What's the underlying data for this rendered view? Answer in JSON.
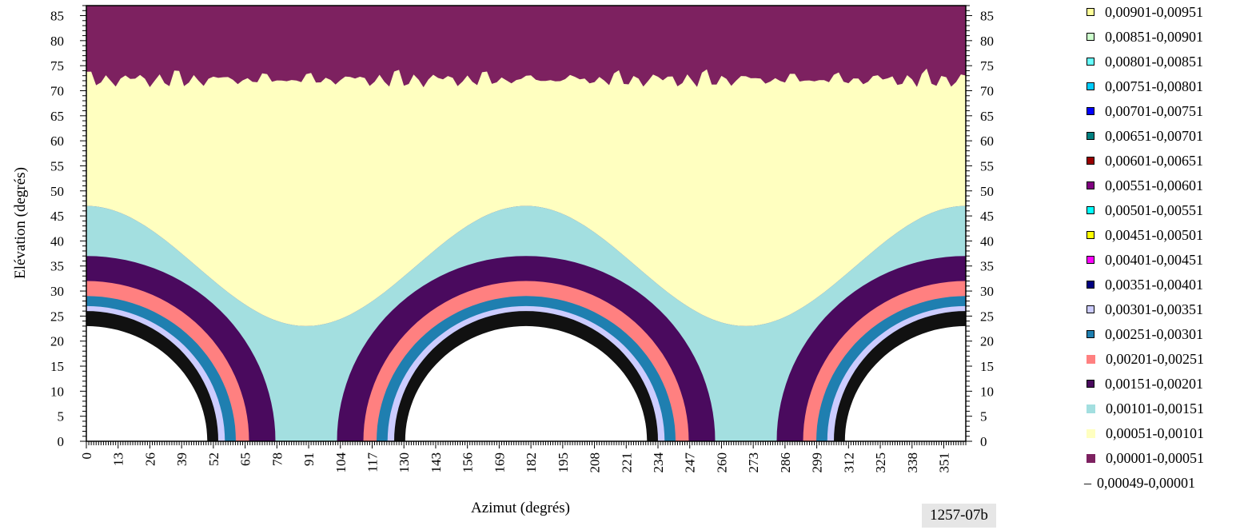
{
  "chart_data": {
    "type": "heatmap",
    "title": "",
    "xlabel": "Azimut (degrés)",
    "ylabel": "Elévation (degrés)",
    "xlim": [
      0,
      360
    ],
    "ylim": [
      0,
      87
    ],
    "x_ticks": [
      "0",
      "13",
      "26",
      "39",
      "52",
      "65",
      "78",
      "91",
      "104",
      "117",
      "130",
      "143",
      "156",
      "169",
      "182",
      "195",
      "208",
      "221",
      "234",
      "247",
      "260",
      "273",
      "286",
      "299",
      "312",
      "325",
      "338",
      "351"
    ],
    "y_ticks": [
      "0",
      "5",
      "10",
      "15",
      "20",
      "25",
      "30",
      "35",
      "40",
      "45",
      "50",
      "55",
      "60",
      "65",
      "70",
      "75",
      "80",
      "85"
    ],
    "legend": [
      {
        "label": "0,00901-0,00951",
        "color": "#ffff99"
      },
      {
        "label": "0,00851-0,00901",
        "color": "#ccffcc"
      },
      {
        "label": "0,00801-0,00851",
        "color": "#66ffff"
      },
      {
        "label": "0,00751-0,00801",
        "color": "#00ccff"
      },
      {
        "label": "0,00701-0,00751",
        "color": "#0000ff"
      },
      {
        "label": "0,00651-0,00701",
        "color": "#008080"
      },
      {
        "label": "0,00601-0,00651",
        "color": "#990000"
      },
      {
        "label": "0,00551-0,00601",
        "color": "#800080"
      },
      {
        "label": "0,00501-0,00551",
        "color": "#00ffff"
      },
      {
        "label": "0,00451-0,00501",
        "color": "#ffff00"
      },
      {
        "label": "0,00401-0,00451",
        "color": "#ff00ff"
      },
      {
        "label": "0,00351-0,00401",
        "color": "#000080"
      },
      {
        "label": "0,00301-0,00351",
        "color": "#ccccff"
      },
      {
        "label": "0,00251-0,00301",
        "color": "#1f7fb0"
      },
      {
        "label": "0,00201-0,00251",
        "color": "#ff8080"
      },
      {
        "label": "0,00151-0,00201",
        "color": "#4a0a5e"
      },
      {
        "label": "0,00101-0,00151",
        "color": "#a3dfe0"
      },
      {
        "label": "0,00051-0,00101",
        "color": "#ffffc0"
      },
      {
        "label": "0,00001-0,00051",
        "color": "#7d2160"
      },
      {
        "label": "0,00049-0,00001",
        "color": "#ffffff",
        "prefix": "–"
      }
    ],
    "bands": [
      {
        "label": "0,00001-0,00051",
        "color": "#7d2160",
        "lower_elevation_deg": 72
      },
      {
        "label": "0,00051-0,00101",
        "color": "#ffffc0",
        "lower_elevation_min_deg": 23,
        "lower_elevation_max_deg": 47
      },
      {
        "label": "0,00101-0,00151",
        "color": "#a3dfe0",
        "arch_top_deg": 37,
        "arch_center_azimuts_deg": [
          0,
          180,
          360
        ]
      },
      {
        "label": "0,00151-0,00201",
        "color": "#4a0a5e",
        "arch_top_deg": 35
      },
      {
        "label": "0,00201-0,00251",
        "color": "#ff8080",
        "arch_top_deg": 32
      },
      {
        "label": "0,00251-0,00301",
        "color": "#1f7fb0",
        "arch_top_deg": 29
      },
      {
        "label": "0,00301-0,00351",
        "color": "#ccccff",
        "arch_top_deg": 27
      }
    ],
    "grid": false,
    "legend_position": "right"
  },
  "figure_id": "1257-07b"
}
